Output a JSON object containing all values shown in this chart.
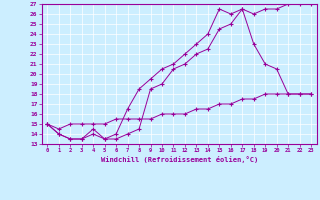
{
  "title": "",
  "xlabel": "Windchill (Refroidissement éolien,°C)",
  "ylabel": "",
  "background_color": "#cceeff",
  "line_color": "#990099",
  "xlim": [
    -0.5,
    23.5
  ],
  "ylim": [
    13,
    27
  ],
  "xticks": [
    0,
    1,
    2,
    3,
    4,
    5,
    6,
    7,
    8,
    9,
    10,
    11,
    12,
    13,
    14,
    15,
    16,
    17,
    18,
    19,
    20,
    21,
    22,
    23
  ],
  "yticks": [
    13,
    14,
    15,
    16,
    17,
    18,
    19,
    20,
    21,
    22,
    23,
    24,
    25,
    26,
    27
  ],
  "line1_x": [
    0,
    1,
    2,
    3,
    4,
    5,
    6,
    7,
    8,
    9,
    10,
    11,
    12,
    13,
    14,
    15,
    16,
    17,
    18,
    19,
    20,
    21,
    22,
    23
  ],
  "line1_y": [
    15,
    14,
    13.5,
    13.5,
    14,
    13.5,
    13.5,
    14,
    14.5,
    18.5,
    19,
    20.5,
    21,
    22,
    22.5,
    24.5,
    25,
    26.5,
    26,
    26.5,
    26.5,
    27,
    27,
    27
  ],
  "line2_x": [
    0,
    1,
    2,
    3,
    4,
    5,
    6,
    7,
    8,
    9,
    10,
    11,
    12,
    13,
    14,
    15,
    16,
    17,
    18,
    19,
    20,
    21,
    22,
    23
  ],
  "line2_y": [
    15,
    14,
    13.5,
    13.5,
    14.5,
    13.5,
    14,
    16.5,
    18.5,
    19.5,
    20.5,
    21,
    22,
    23,
    24,
    26.5,
    26,
    26.5,
    23,
    21,
    20.5,
    18,
    18,
    18
  ],
  "line3_x": [
    0,
    1,
    2,
    3,
    4,
    5,
    6,
    7,
    8,
    9,
    10,
    11,
    12,
    13,
    14,
    15,
    16,
    17,
    18,
    19,
    20,
    21,
    22,
    23
  ],
  "line3_y": [
    15,
    14.5,
    15,
    15,
    15,
    15,
    15.5,
    15.5,
    15.5,
    15.5,
    16,
    16,
    16,
    16.5,
    16.5,
    17,
    17,
    17.5,
    17.5,
    18,
    18,
    18,
    18,
    18
  ]
}
